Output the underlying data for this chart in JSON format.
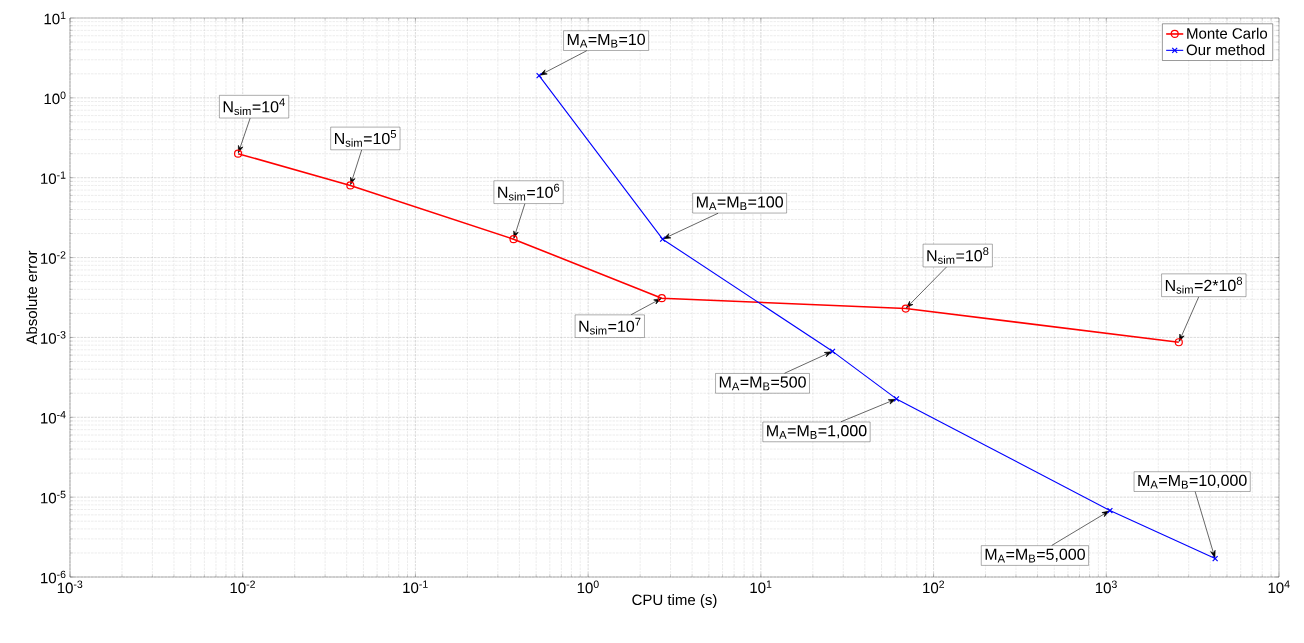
{
  "chart_data": {
    "type": "line",
    "xlabel": "CPU time (s)",
    "ylabel": "Absolute error",
    "log": "xy",
    "grid": true,
    "legend": "top right",
    "xlim": [
      0.001,
      10000
    ],
    "ylim": [
      1e-06,
      10
    ],
    "xticks": [
      {
        "value": 0.001,
        "label": "10$^{-3}$"
      },
      {
        "value": 0.01,
        "label": "10$^{-2}$"
      },
      {
        "value": 0.1,
        "label": "10$^{-1}$"
      },
      {
        "value": 1,
        "label": "10$^{0}$"
      },
      {
        "value": 10,
        "label": "10$^{1}$"
      },
      {
        "value": 100,
        "label": "10$^{2}$"
      },
      {
        "value": 1000,
        "label": "10$^{3}$"
      },
      {
        "value": 10000,
        "label": "10$^{4}$"
      }
    ],
    "yticks": [
      {
        "value": 1e-06,
        "label": "10$^{-6}$"
      },
      {
        "value": 1e-05,
        "label": "10$^{-5}$"
      },
      {
        "value": 0.0001,
        "label": "10$^{-4}$"
      },
      {
        "value": 0.001,
        "label": "10$^{-3}$"
      },
      {
        "value": 0.01,
        "label": "10$^{-2}$"
      },
      {
        "value": 0.1,
        "label": "10$^{-1}$"
      },
      {
        "value": 1,
        "label": "10$^{0}$"
      },
      {
        "value": 10,
        "label": "10$^{1}$"
      }
    ],
    "series": [
      {
        "name": "Monte Carlo",
        "color": "#ff0000",
        "marker": "circle",
        "x": [
          0.0094,
          0.042,
          0.37,
          2.67,
          69,
          2630
        ],
        "values": [
          0.2,
          0.08,
          0.017,
          0.0031,
          0.0023,
          0.00087
        ]
      },
      {
        "name": "Our method",
        "color": "#0000ff",
        "marker": "cross",
        "x": [
          0.52,
          2.7,
          26,
          61,
          1050,
          4270
        ],
        "values": [
          1.9,
          0.017,
          0.00067,
          0.00017,
          6.8e-06,
          1.7e-06
        ]
      }
    ],
    "annotations": [
      {
        "text": "N$_{sim}$=10$^{4}$",
        "x": 0.0094,
        "y": 0.2
      },
      {
        "text": "N$_{sim}$=10$^{5}$",
        "x": 0.042,
        "y": 0.08
      },
      {
        "text": "N$_{sim}$=10$^{6}$",
        "x": 0.37,
        "y": 0.017
      },
      {
        "text": "N$_{sim}$=10$^{7}$",
        "x": 2.67,
        "y": 0.0031
      },
      {
        "text": "N$_{sim}$=10$^{8}$",
        "x": 69,
        "y": 0.0023
      },
      {
        "text": "N$_{sim}$=2*10$^{8}$",
        "x": 2630,
        "y": 0.00087
      },
      {
        "text": "M$_{A}$=M$_{B}$=10",
        "x": 0.52,
        "y": 1.9
      },
      {
        "text": "M$_{A}$=M$_{B}$=100",
        "x": 2.7,
        "y": 0.017
      },
      {
        "text": "M$_{A}$=M$_{B}$=500",
        "x": 26,
        "y": 0.00067
      },
      {
        "text": "M$_{A}$=M$_{B}$=1,000",
        "x": 61,
        "y": 0.00017
      },
      {
        "text": "M$_{A}$=M$_{B}$=5,000",
        "x": 1050,
        "y": 6.8e-06
      },
      {
        "text": "M$_{A}$=M$_{B}$=10,000",
        "x": 4270,
        "y": 1.7e-06
      }
    ]
  }
}
